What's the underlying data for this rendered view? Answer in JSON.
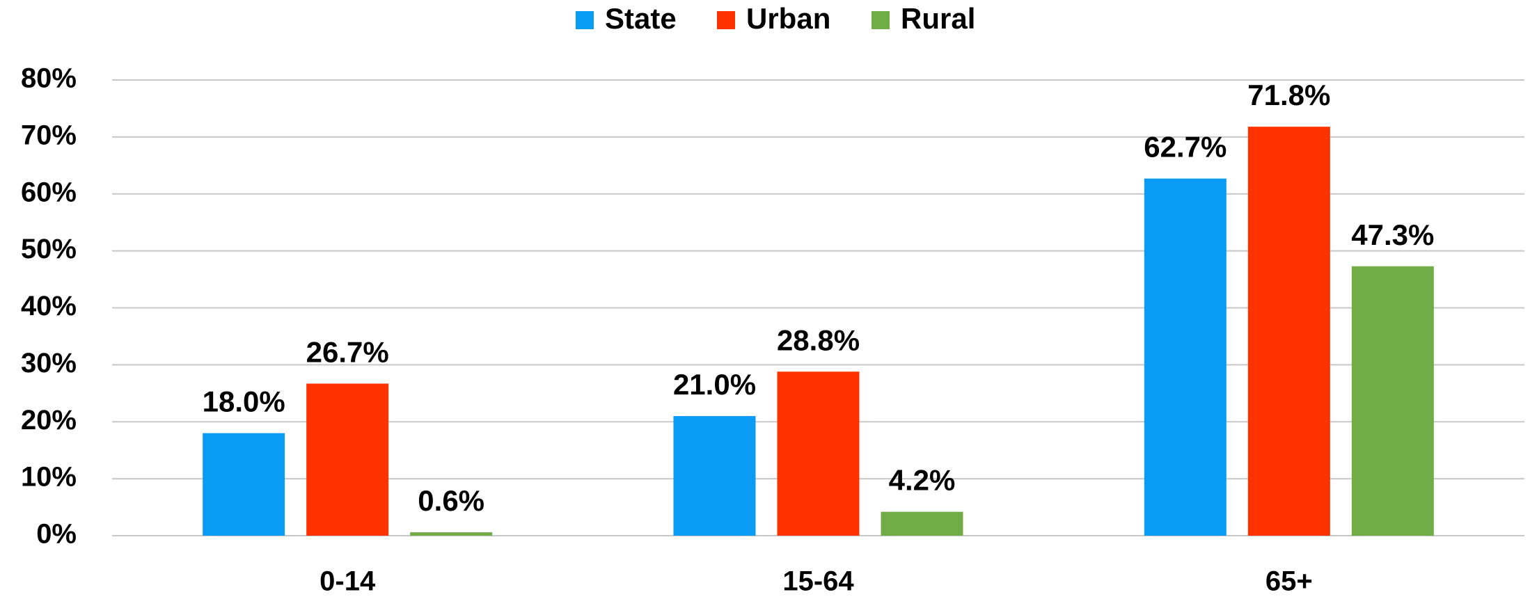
{
  "chart_data": {
    "type": "bar",
    "categories": [
      "0-14",
      "15-64",
      "65+"
    ],
    "series": [
      {
        "name": "State",
        "color": "#0a9bf5",
        "values": [
          18.0,
          21.0,
          62.7
        ],
        "value_labels": [
          "18.0%",
          "21.0%",
          "62.7%"
        ]
      },
      {
        "name": "Urban",
        "color": "#ff3300",
        "values": [
          26.7,
          28.8,
          71.8
        ],
        "value_labels": [
          "26.7%",
          "28.8%",
          "71.8%"
        ]
      },
      {
        "name": "Rural",
        "color": "#70ad47",
        "values": [
          0.6,
          4.2,
          47.3
        ],
        "value_labels": [
          "0.6%",
          "4.2%",
          "47.3%"
        ]
      }
    ],
    "ylim": [
      0,
      80
    ],
    "yticks": [
      {
        "value": 0,
        "label": "0%"
      },
      {
        "value": 10,
        "label": "10%"
      },
      {
        "value": 20,
        "label": "20%"
      },
      {
        "value": 30,
        "label": "30%"
      },
      {
        "value": 40,
        "label": "40%"
      },
      {
        "value": 50,
        "label": "50%"
      },
      {
        "value": 60,
        "label": "60%"
      },
      {
        "value": 70,
        "label": "70%"
      },
      {
        "value": 80,
        "label": "80%"
      }
    ],
    "grid": true,
    "legend": "top"
  }
}
